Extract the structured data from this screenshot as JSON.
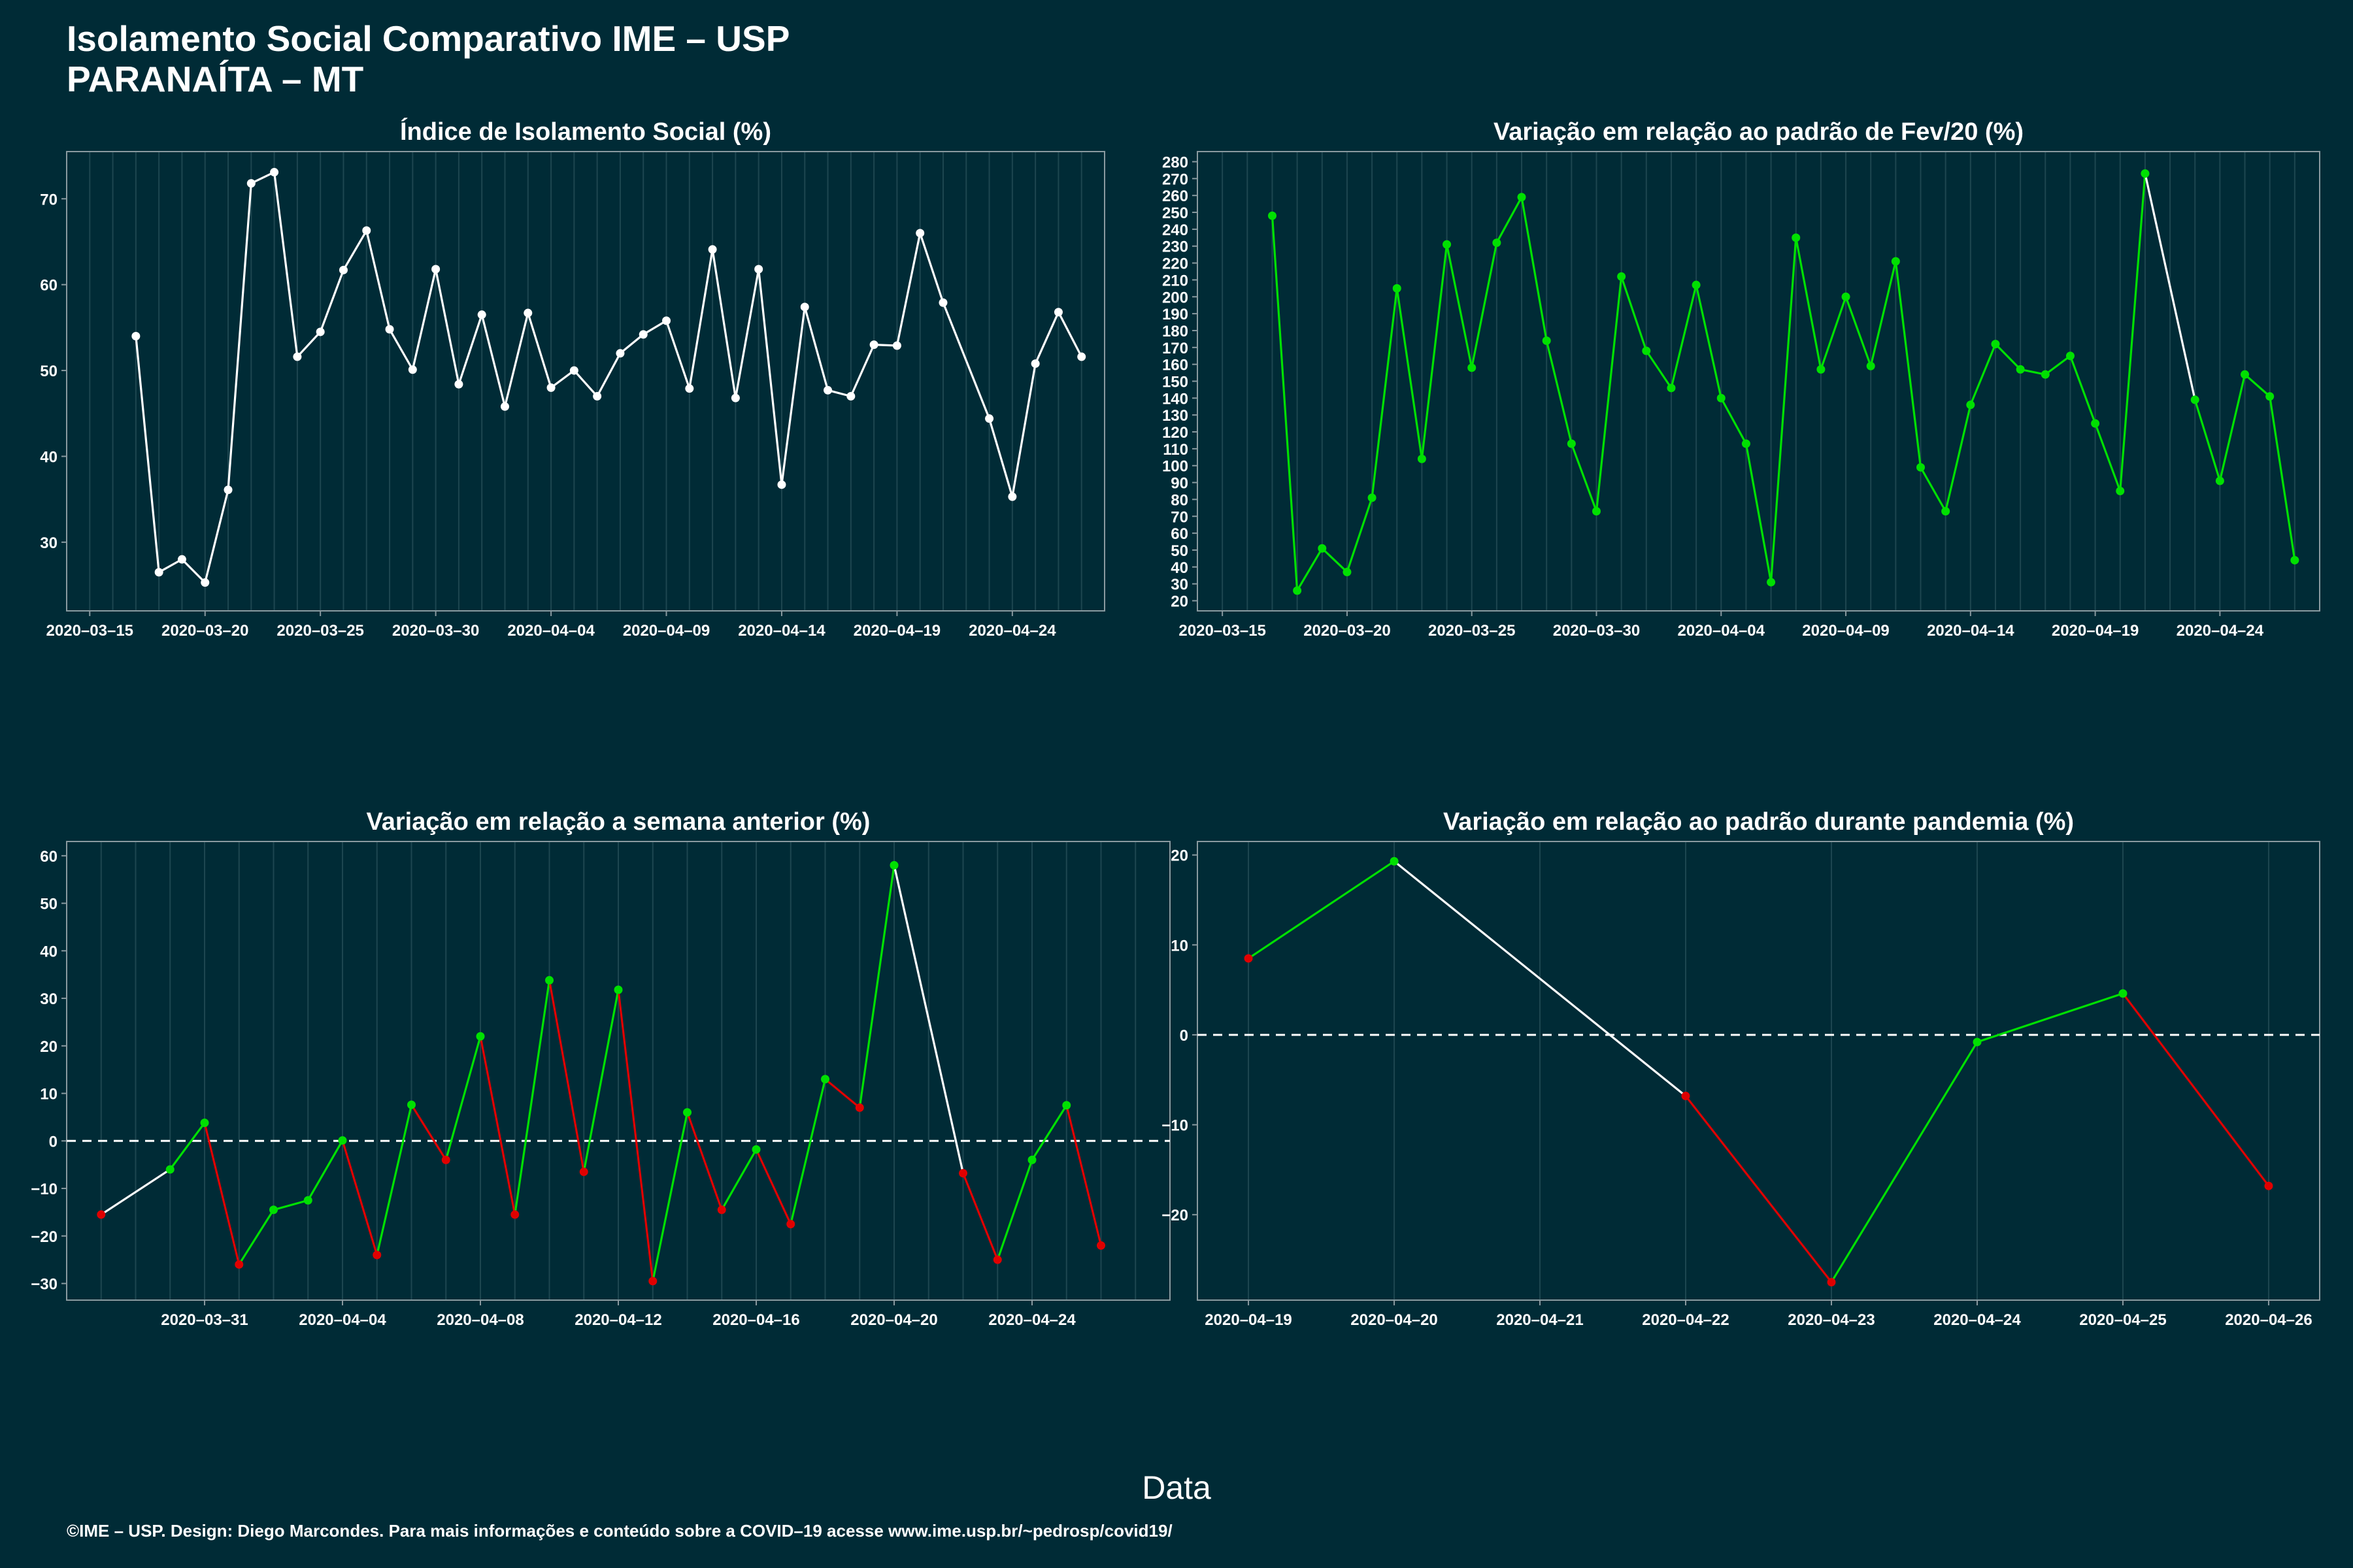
{
  "header": {
    "title_line1": "Isolamento Social Comparativo IME – USP",
    "title_line2": "PARANAÍTA – MT"
  },
  "xlabel": "Data",
  "caption": "©IME – USP. Design: Diego Marcondes. Para mais informações e conteúdo sobre a COVID–19 acesse www.ime.usp.br/~pedrosp/covid19/",
  "colors": {
    "background": "#002b36",
    "neutral": "#ffffff",
    "up": "#00e000",
    "down": "#e00000",
    "grid": "#1d4650"
  },
  "chart_data": [
    {
      "id": "indice",
      "type": "line",
      "title": "Índice de Isolamento Social (%)",
      "coloring": "white",
      "xlim": [
        "2020-03-14",
        "2020-04-28"
      ],
      "ylim": [
        22,
        75.5
      ],
      "yticks": [
        30,
        40,
        50,
        60,
        70
      ],
      "xticks": [
        "2020-03-15",
        "2020-03-20",
        "2020-03-25",
        "2020-03-30",
        "2020-04-04",
        "2020-04-09",
        "2020-04-14",
        "2020-04-19",
        "2020-04-24"
      ],
      "zero_line": false,
      "points": [
        [
          "2020-03-17",
          54.0
        ],
        [
          "2020-03-18",
          26.5
        ],
        [
          "2020-03-19",
          28.0
        ],
        [
          "2020-03-20",
          25.3
        ],
        [
          "2020-03-21",
          36.1
        ],
        [
          "2020-03-22",
          71.8
        ],
        [
          "2020-03-23",
          73.1
        ],
        [
          "2020-03-24",
          51.6
        ],
        [
          "2020-03-25",
          54.5
        ],
        [
          "2020-03-26",
          61.7
        ],
        [
          "2020-03-27",
          66.3
        ],
        [
          "2020-03-28",
          54.8
        ],
        [
          "2020-03-29",
          50.1
        ],
        [
          "2020-03-30",
          61.8
        ],
        [
          "2020-03-31",
          48.4
        ],
        [
          "2020-04-01",
          56.5
        ],
        [
          "2020-04-02",
          45.8
        ],
        [
          "2020-04-03",
          56.7
        ],
        [
          "2020-04-04",
          48.0
        ],
        [
          "2020-04-05",
          50.0
        ],
        [
          "2020-04-06",
          47.0
        ],
        [
          "2020-04-07",
          52.0
        ],
        [
          "2020-04-08",
          54.2
        ],
        [
          "2020-04-09",
          55.8
        ],
        [
          "2020-04-10",
          47.9
        ],
        [
          "2020-04-11",
          64.1
        ],
        [
          "2020-04-12",
          46.8
        ],
        [
          "2020-04-13",
          61.8
        ],
        [
          "2020-04-14",
          36.7
        ],
        [
          "2020-04-15",
          57.4
        ],
        [
          "2020-04-16",
          47.7
        ],
        [
          "2020-04-17",
          47.0
        ],
        [
          "2020-04-18",
          53.0
        ],
        [
          "2020-04-19",
          52.9
        ],
        [
          "2020-04-20",
          66.0
        ],
        [
          "2020-04-21",
          57.9
        ],
        [
          "2020-04-23",
          44.4
        ],
        [
          "2020-04-24",
          35.3
        ],
        [
          "2020-04-25",
          50.8
        ],
        [
          "2020-04-26",
          56.8
        ],
        [
          "2020-04-27",
          51.6
        ]
      ]
    },
    {
      "id": "fev",
      "type": "line",
      "title": "Variação em relação ao padrão de Fev/20 (%)",
      "coloring": "green",
      "xlim": [
        "2020-03-14",
        "2020-04-28"
      ],
      "ylim": [
        14,
        286
      ],
      "yticks": [
        20,
        30,
        40,
        50,
        60,
        70,
        80,
        90,
        100,
        110,
        120,
        130,
        140,
        150,
        160,
        170,
        180,
        190,
        200,
        210,
        220,
        230,
        240,
        250,
        260,
        270,
        280
      ],
      "xticks": [
        "2020-03-15",
        "2020-03-20",
        "2020-03-25",
        "2020-03-30",
        "2020-04-04",
        "2020-04-09",
        "2020-04-14",
        "2020-04-19",
        "2020-04-24"
      ],
      "zero_line": false,
      "points": [
        [
          "2020-03-17",
          248
        ],
        [
          "2020-03-18",
          26
        ],
        [
          "2020-03-19",
          51
        ],
        [
          "2020-03-20",
          37
        ],
        [
          "2020-03-21",
          81
        ],
        [
          "2020-03-22",
          205
        ],
        [
          "2020-03-23",
          104
        ],
        [
          "2020-03-24",
          231
        ],
        [
          "2020-03-25",
          158
        ],
        [
          "2020-03-26",
          232
        ],
        [
          "2020-03-27",
          259
        ],
        [
          "2020-03-28",
          174
        ],
        [
          "2020-03-29",
          113
        ],
        [
          "2020-03-30",
          73
        ],
        [
          "2020-03-31",
          212
        ],
        [
          "2020-04-01",
          168
        ],
        [
          "2020-04-02",
          146
        ],
        [
          "2020-04-03",
          207
        ],
        [
          "2020-04-04",
          140
        ],
        [
          "2020-04-05",
          113
        ],
        [
          "2020-04-06",
          31
        ],
        [
          "2020-04-07",
          235
        ],
        [
          "2020-04-08",
          157
        ],
        [
          "2020-04-09",
          200
        ],
        [
          "2020-04-10",
          159
        ],
        [
          "2020-04-11",
          221
        ],
        [
          "2020-04-12",
          99
        ],
        [
          "2020-04-13",
          73
        ],
        [
          "2020-04-14",
          136
        ],
        [
          "2020-04-15",
          172
        ],
        [
          "2020-04-16",
          157
        ],
        [
          "2020-04-17",
          154
        ],
        [
          "2020-04-18",
          165
        ],
        [
          "2020-04-19",
          125
        ],
        [
          "2020-04-20",
          85
        ],
        [
          "2020-04-21",
          273
        ],
        [
          "2020-04-23",
          139
        ],
        [
          "2020-04-24",
          91
        ],
        [
          "2020-04-25",
          154
        ],
        [
          "2020-04-26",
          141
        ],
        [
          "2020-04-27",
          44
        ]
      ]
    },
    {
      "id": "semana",
      "type": "line",
      "title": "Variação em relação a semana anterior (%)",
      "coloring": "updown",
      "xlim": [
        "2020-03-27",
        "2020-04-28"
      ],
      "ylim": [
        -33.5,
        63
      ],
      "yticks": [
        -30,
        -20,
        -10,
        0,
        10,
        20,
        30,
        40,
        50,
        60
      ],
      "xticks": [
        "2020-03-31",
        "2020-04-04",
        "2020-04-08",
        "2020-04-12",
        "2020-04-16",
        "2020-04-20",
        "2020-04-24"
      ],
      "zero_line": true,
      "points": [
        [
          "2020-03-28",
          -15.5
        ],
        [
          "2020-03-30",
          -6
        ],
        [
          "2020-03-31",
          3.8
        ],
        [
          "2020-04-01",
          -26
        ],
        [
          "2020-04-02",
          -14.5
        ],
        [
          "2020-04-03",
          -12.5
        ],
        [
          "2020-04-04",
          0.1
        ],
        [
          "2020-04-05",
          -24
        ],
        [
          "2020-04-06",
          7.6
        ],
        [
          "2020-04-07",
          -4
        ],
        [
          "2020-04-08",
          22
        ],
        [
          "2020-04-09",
          -15.5
        ],
        [
          "2020-04-10",
          33.8
        ],
        [
          "2020-04-11",
          -6.5
        ],
        [
          "2020-04-12",
          31.8
        ],
        [
          "2020-04-13",
          -29.5
        ],
        [
          "2020-04-14",
          6
        ],
        [
          "2020-04-15",
          -14.5
        ],
        [
          "2020-04-16",
          -1.8
        ],
        [
          "2020-04-17",
          -17.5
        ],
        [
          "2020-04-18",
          13
        ],
        [
          "2020-04-19",
          7
        ],
        [
          "2020-04-20",
          58
        ],
        [
          "2020-04-22",
          -6.8
        ],
        [
          "2020-04-23",
          -25
        ],
        [
          "2020-04-24",
          -4
        ],
        [
          "2020-04-25",
          7.5
        ],
        [
          "2020-04-26",
          -22
        ]
      ]
    },
    {
      "id": "pandemia",
      "type": "line",
      "title": "Variação em relação ao padrão durante pandemia (%)",
      "coloring": "updown",
      "xlim": [
        "2020-04-18.65",
        "2020-04-26.35"
      ],
      "ylim": [
        -29.5,
        21.5
      ],
      "yticks": [
        -20,
        -10,
        0,
        10,
        20
      ],
      "xticks": [
        "2020-04-19",
        "2020-04-20",
        "2020-04-21",
        "2020-04-22",
        "2020-04-23",
        "2020-04-24",
        "2020-04-25",
        "2020-04-26"
      ],
      "zero_line": true,
      "points": [
        [
          "2020-04-19",
          8.5
        ],
        [
          "2020-04-20",
          19.3
        ],
        [
          "2020-04-22",
          -6.8
        ],
        [
          "2020-04-23",
          -27.5
        ],
        [
          "2020-04-24",
          -0.8
        ],
        [
          "2020-04-25",
          4.6
        ],
        [
          "2020-04-26",
          -16.8
        ]
      ]
    }
  ]
}
